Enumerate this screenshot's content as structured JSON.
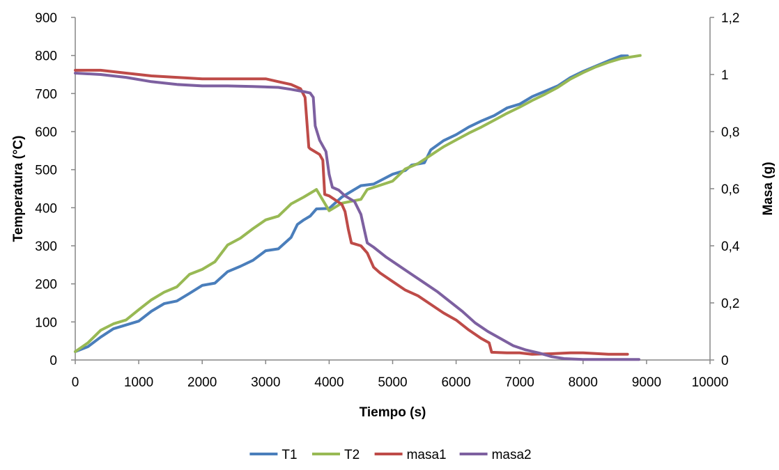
{
  "chart_data": {
    "type": "line",
    "title": "",
    "xlabel": "Tiempo (s)",
    "ylabel": "Temperatura (°C)",
    "y2label": "Masa (g)",
    "xlim": [
      0,
      10000
    ],
    "ylim": [
      0,
      900
    ],
    "y2lim": [
      0,
      1.2
    ],
    "x_ticks": [
      "0",
      "1000",
      "2000",
      "3000",
      "4000",
      "5000",
      "6000",
      "7000",
      "8000",
      "9000",
      "10000"
    ],
    "y_ticks": [
      "0",
      "100",
      "200",
      "300",
      "400",
      "500",
      "600",
      "700",
      "800",
      "900"
    ],
    "y2_ticks": [
      "0",
      "0,2",
      "0,4",
      "0,6",
      "0,8",
      "1",
      "1,2"
    ],
    "grid": false,
    "legend_position": "bottom",
    "series": [
      {
        "name": "T1",
        "axis": "left",
        "color": "#4a7ebb",
        "points": [
          [
            0,
            22
          ],
          [
            200,
            35
          ],
          [
            400,
            60
          ],
          [
            600,
            82
          ],
          [
            800,
            92
          ],
          [
            1000,
            102
          ],
          [
            1200,
            128
          ],
          [
            1400,
            148
          ],
          [
            1600,
            155
          ],
          [
            1800,
            175
          ],
          [
            2000,
            196
          ],
          [
            2200,
            202
          ],
          [
            2400,
            232
          ],
          [
            2600,
            246
          ],
          [
            2800,
            262
          ],
          [
            3000,
            287
          ],
          [
            3200,
            292
          ],
          [
            3400,
            322
          ],
          [
            3500,
            356
          ],
          [
            3600,
            368
          ],
          [
            3700,
            378
          ],
          [
            3800,
            397
          ],
          [
            4000,
            398
          ],
          [
            4200,
            428
          ],
          [
            4500,
            458
          ],
          [
            4700,
            462
          ],
          [
            5000,
            488
          ],
          [
            5200,
            498
          ],
          [
            5300,
            512
          ],
          [
            5500,
            518
          ],
          [
            5600,
            552
          ],
          [
            5800,
            576
          ],
          [
            6000,
            592
          ],
          [
            6200,
            612
          ],
          [
            6400,
            628
          ],
          [
            6600,
            642
          ],
          [
            6800,
            662
          ],
          [
            7000,
            672
          ],
          [
            7200,
            692
          ],
          [
            7400,
            706
          ],
          [
            7600,
            720
          ],
          [
            7800,
            742
          ],
          [
            8000,
            758
          ],
          [
            8200,
            772
          ],
          [
            8400,
            786
          ],
          [
            8600,
            799
          ],
          [
            8700,
            799
          ]
        ]
      },
      {
        "name": "T2",
        "axis": "left",
        "color": "#98b954",
        "points": [
          [
            0,
            22
          ],
          [
            200,
            45
          ],
          [
            400,
            78
          ],
          [
            600,
            95
          ],
          [
            800,
            105
          ],
          [
            1000,
            132
          ],
          [
            1200,
            158
          ],
          [
            1400,
            178
          ],
          [
            1600,
            192
          ],
          [
            1800,
            225
          ],
          [
            2000,
            238
          ],
          [
            2200,
            258
          ],
          [
            2400,
            302
          ],
          [
            2600,
            320
          ],
          [
            2800,
            345
          ],
          [
            3000,
            368
          ],
          [
            3200,
            378
          ],
          [
            3400,
            410
          ],
          [
            3600,
            428
          ],
          [
            3800,
            448
          ],
          [
            4000,
            392
          ],
          [
            4200,
            412
          ],
          [
            4500,
            422
          ],
          [
            4600,
            448
          ],
          [
            5000,
            470
          ],
          [
            5200,
            502
          ],
          [
            5400,
            516
          ],
          [
            5600,
            538
          ],
          [
            5800,
            560
          ],
          [
            6000,
            578
          ],
          [
            6200,
            596
          ],
          [
            6400,
            612
          ],
          [
            6600,
            630
          ],
          [
            6800,
            648
          ],
          [
            7000,
            664
          ],
          [
            7200,
            682
          ],
          [
            7400,
            698
          ],
          [
            7600,
            716
          ],
          [
            7800,
            738
          ],
          [
            8000,
            755
          ],
          [
            8200,
            770
          ],
          [
            8400,
            782
          ],
          [
            8600,
            792
          ],
          [
            8900,
            800
          ]
        ]
      },
      {
        "name": "masa1",
        "axis": "right",
        "color": "#be4b48",
        "points": [
          [
            0,
            1.015
          ],
          [
            400,
            1.015
          ],
          [
            800,
            1.005
          ],
          [
            1200,
            0.995
          ],
          [
            1600,
            0.99
          ],
          [
            2000,
            0.985
          ],
          [
            2400,
            0.985
          ],
          [
            2800,
            0.985
          ],
          [
            3000,
            0.985
          ],
          [
            3200,
            0.975
          ],
          [
            3400,
            0.965
          ],
          [
            3550,
            0.95
          ],
          [
            3620,
            0.92
          ],
          [
            3680,
            0.745
          ],
          [
            3700,
            0.74
          ],
          [
            3850,
            0.72
          ],
          [
            3900,
            0.7
          ],
          [
            3930,
            0.58
          ],
          [
            4000,
            0.575
          ],
          [
            4100,
            0.56
          ],
          [
            4200,
            0.545
          ],
          [
            4250,
            0.52
          ],
          [
            4300,
            0.46
          ],
          [
            4350,
            0.41
          ],
          [
            4500,
            0.4
          ],
          [
            4600,
            0.375
          ],
          [
            4700,
            0.325
          ],
          [
            4800,
            0.305
          ],
          [
            5000,
            0.275
          ],
          [
            5200,
            0.245
          ],
          [
            5400,
            0.225
          ],
          [
            5600,
            0.195
          ],
          [
            5800,
            0.165
          ],
          [
            6000,
            0.14
          ],
          [
            6200,
            0.105
          ],
          [
            6400,
            0.075
          ],
          [
            6520,
            0.06
          ],
          [
            6560,
            0.027
          ],
          [
            6800,
            0.025
          ],
          [
            7000,
            0.025
          ],
          [
            7200,
            0.02
          ],
          [
            7500,
            0.022
          ],
          [
            7800,
            0.025
          ],
          [
            8000,
            0.025
          ],
          [
            8400,
            0.02
          ],
          [
            8700,
            0.02
          ]
        ]
      },
      {
        "name": "masa2",
        "axis": "right",
        "color": "#7d60a0",
        "points": [
          [
            0,
            1.005
          ],
          [
            400,
            1.0
          ],
          [
            800,
            0.99
          ],
          [
            1200,
            0.975
          ],
          [
            1600,
            0.965
          ],
          [
            2000,
            0.96
          ],
          [
            2400,
            0.96
          ],
          [
            2800,
            0.958
          ],
          [
            3200,
            0.955
          ],
          [
            3400,
            0.948
          ],
          [
            3600,
            0.94
          ],
          [
            3700,
            0.935
          ],
          [
            3750,
            0.92
          ],
          [
            3780,
            0.82
          ],
          [
            3850,
            0.77
          ],
          [
            3950,
            0.73
          ],
          [
            4000,
            0.65
          ],
          [
            4050,
            0.605
          ],
          [
            4150,
            0.595
          ],
          [
            4250,
            0.575
          ],
          [
            4400,
            0.555
          ],
          [
            4500,
            0.51
          ],
          [
            4550,
            0.46
          ],
          [
            4600,
            0.41
          ],
          [
            4700,
            0.395
          ],
          [
            4900,
            0.36
          ],
          [
            5100,
            0.33
          ],
          [
            5300,
            0.3
          ],
          [
            5500,
            0.27
          ],
          [
            5700,
            0.24
          ],
          [
            5900,
            0.205
          ],
          [
            6100,
            0.17
          ],
          [
            6300,
            0.13
          ],
          [
            6500,
            0.1
          ],
          [
            6700,
            0.075
          ],
          [
            6900,
            0.05
          ],
          [
            7100,
            0.035
          ],
          [
            7300,
            0.025
          ],
          [
            7500,
            0.012
          ],
          [
            7700,
            0.005
          ],
          [
            8000,
            0.002
          ],
          [
            8500,
            0.002
          ],
          [
            8880,
            0.002
          ]
        ]
      }
    ]
  }
}
